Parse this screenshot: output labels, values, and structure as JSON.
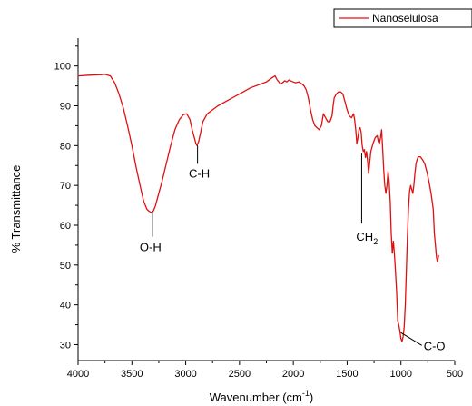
{
  "chart_data": {
    "type": "line",
    "title": "",
    "xlabel": "Wavenumber (cm",
    "xlabel_sup": "-1",
    "xlabel_tail": ")",
    "ylabel": "% Transmittance",
    "xlim": [
      4000,
      500
    ],
    "ylim": [
      26,
      107
    ],
    "x_reversed": true,
    "xticks": [
      4000,
      3500,
      3000,
      2500,
      2000,
      1500,
      1000,
      500
    ],
    "yticks": [
      30,
      40,
      50,
      60,
      70,
      80,
      90,
      100
    ],
    "grid": false,
    "legend_position": "top-right",
    "colors": {
      "series": "#e01010",
      "axis": "#000000"
    },
    "series": [
      {
        "name": "Nanoselulosa",
        "x": [
          4000,
          3900,
          3800,
          3750,
          3700,
          3660,
          3620,
          3580,
          3540,
          3500,
          3460,
          3420,
          3390,
          3360,
          3340,
          3320,
          3300,
          3280,
          3260,
          3220,
          3180,
          3140,
          3100,
          3060,
          3020,
          2990,
          2960,
          2940,
          2920,
          2905,
          2895,
          2880,
          2860,
          2840,
          2800,
          2750,
          2700,
          2600,
          2500,
          2400,
          2300,
          2250,
          2200,
          2170,
          2150,
          2120,
          2100,
          2080,
          2060,
          2040,
          2020,
          2000,
          1980,
          1950,
          1920,
          1900,
          1880,
          1860,
          1840,
          1820,
          1800,
          1780,
          1760,
          1740,
          1730,
          1720,
          1700,
          1680,
          1660,
          1640,
          1630,
          1620,
          1600,
          1580,
          1560,
          1540,
          1520,
          1500,
          1480,
          1460,
          1440,
          1430,
          1420,
          1410,
          1400,
          1390,
          1380,
          1370,
          1360,
          1350,
          1340,
          1330,
          1320,
          1310,
          1300,
          1280,
          1260,
          1240,
          1220,
          1210,
          1200,
          1190,
          1180,
          1170,
          1160,
          1150,
          1140,
          1130,
          1120,
          1110,
          1100,
          1090,
          1080,
          1070,
          1060,
          1050,
          1040,
          1030,
          1020,
          1010,
          1000,
          990,
          980,
          970,
          960,
          950,
          940,
          930,
          920,
          910,
          900,
          890,
          880,
          870,
          860,
          850,
          840,
          820,
          800,
          780,
          760,
          740,
          720,
          700,
          690,
          680,
          670,
          660,
          650
        ],
        "y": [
          97.5,
          97.7,
          97.8,
          97.9,
          97.5,
          95.8,
          93.0,
          89.5,
          85.0,
          80.0,
          74.5,
          69.5,
          66.0,
          64.0,
          63.5,
          63.2,
          63.6,
          65.0,
          67.0,
          71.0,
          75.5,
          80.0,
          84.0,
          86.5,
          87.8,
          88.0,
          86.5,
          84.0,
          82.0,
          80.5,
          80.0,
          81.0,
          83.5,
          86.0,
          88.0,
          89.0,
          90.0,
          91.5,
          93.0,
          94.5,
          95.5,
          96.0,
          97.0,
          97.5,
          96.5,
          95.5,
          95.8,
          96.3,
          96.0,
          96.5,
          96.2,
          96.0,
          95.8,
          96.0,
          95.5,
          95.0,
          94.0,
          92.0,
          89.0,
          86.5,
          85.0,
          84.5,
          84.0,
          85.0,
          86.5,
          88.0,
          87.0,
          86.0,
          86.0,
          87.5,
          90.0,
          92.0,
          93.0,
          93.5,
          93.5,
          93.0,
          91.0,
          89.0,
          87.5,
          87.0,
          88.0,
          86.5,
          84.0,
          80.5,
          82.0,
          84.0,
          84.5,
          83.5,
          80.0,
          78.5,
          79.0,
          77.0,
          78.5,
          76.0,
          73.0,
          78.5,
          80.5,
          82.0,
          82.5,
          81.0,
          80.5,
          82.0,
          84.0,
          79.0,
          74.0,
          70.0,
          68.0,
          70.0,
          73.5,
          71.0,
          66.0,
          58.0,
          53.0,
          56.0,
          52.5,
          48.0,
          43.0,
          36.0,
          35.0,
          33.5,
          31.5,
          30.8,
          32.0,
          34.5,
          40.0,
          48.0,
          57.0,
          64.0,
          68.5,
          70.0,
          69.0,
          68.0,
          70.0,
          73.0,
          75.5,
          76.5,
          77.2,
          77.2,
          76.5,
          75.5,
          73.5,
          71.0,
          68.0,
          64.0,
          58.0,
          55.0,
          52.0,
          50.8,
          52.5
        ]
      }
    ],
    "annotations": [
      {
        "label": "O-H",
        "x": 3310,
        "y": 63.5,
        "sub": ""
      },
      {
        "label": "C-H",
        "x": 2890,
        "y": 80.0,
        "sub": ""
      },
      {
        "label": "CH",
        "x": 1365,
        "y": 78.0,
        "sub": "2"
      },
      {
        "label": "C-O",
        "x": 1000,
        "y": 33.0,
        "sub": ""
      }
    ]
  }
}
